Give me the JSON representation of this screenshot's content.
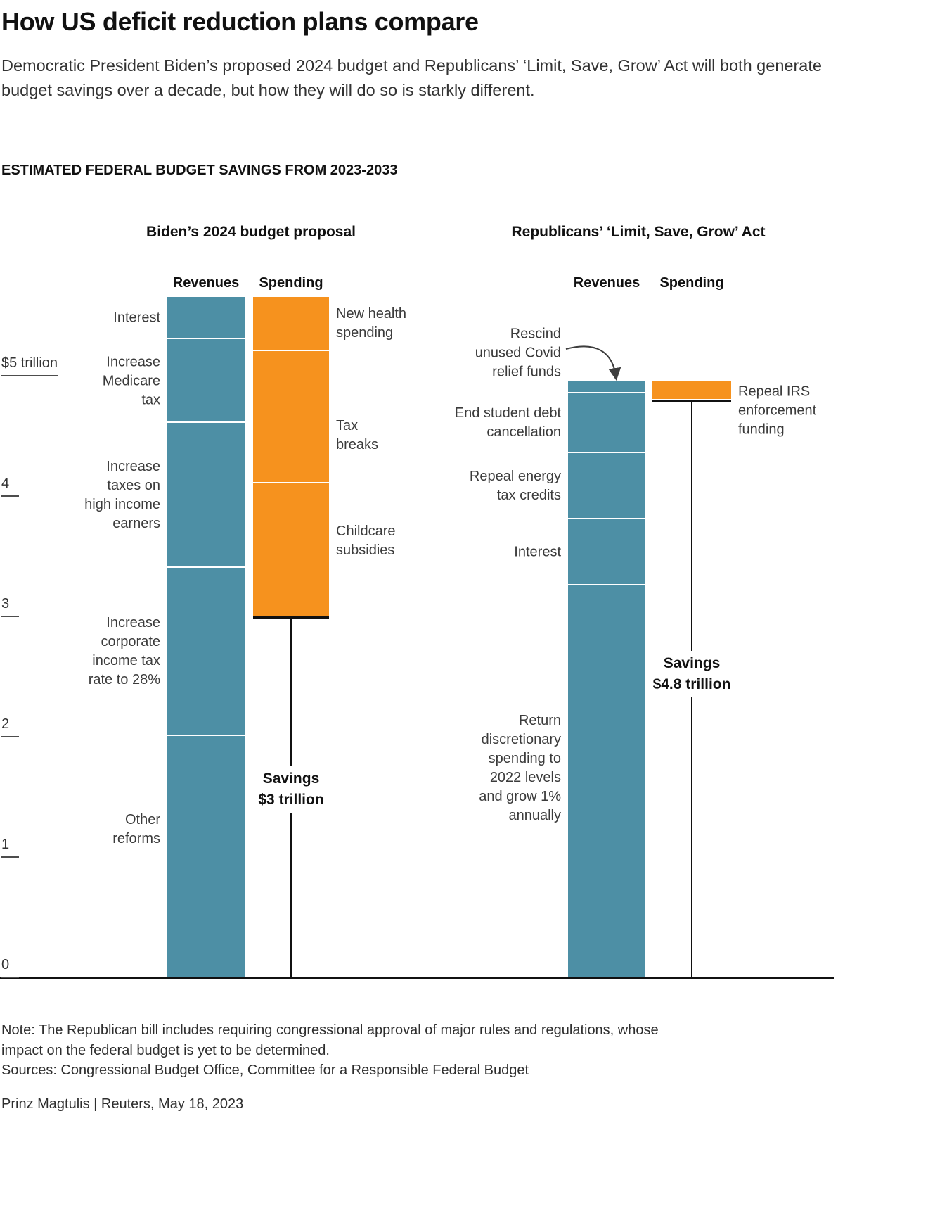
{
  "header": {
    "title": "How US deficit reduction plans compare",
    "subtitle": "Democratic President Biden’s proposed 2024 budget and Republicans’ ‘Limit, Save, Grow’ Act will both generate budget savings over a decade, but how they will do so is starkly different."
  },
  "chart_data": {
    "type": "bar",
    "variant": "stacked-floating-comparison",
    "title": "ESTIMATED FEDERAL BUDGET SAVINGS FROM 2023-2033",
    "unit": "trillions of US dollars",
    "ylim": [
      0,
      5.8
    ],
    "grid": false,
    "y_ticks": [
      {
        "value": 5,
        "label": "$5 trillion"
      },
      {
        "value": 4,
        "label": "4"
      },
      {
        "value": 3,
        "label": "3"
      },
      {
        "value": 2,
        "label": "2"
      },
      {
        "value": 1,
        "label": "1"
      },
      {
        "value": 0,
        "label": "0"
      }
    ],
    "colors": {
      "revenues": "#4d8fa5",
      "spending": "#f6921e",
      "axis": "#111111"
    },
    "groups": [
      {
        "id": "biden",
        "title": "Biden’s 2024 budget proposal",
        "columns": {
          "revenues": "Revenues",
          "spending": "Spending"
        },
        "revenues_total": 5.65,
        "revenues_segments": [
          {
            "label": "Interest",
            "value": 0.35
          },
          {
            "label": "Increase\nMedicare\ntax",
            "value": 0.7
          },
          {
            "label": "Increase\ntaxes on\nhigh income\nearners",
            "value": 1.2
          },
          {
            "label": "Increase\ncorporate\nincome tax\nrate to 28%",
            "value": 1.4
          },
          {
            "label": "Other\nreforms",
            "value": 2.0
          }
        ],
        "spending_top": 5.65,
        "spending_bottom": 3.0,
        "spending_segments": [
          {
            "label": "New health\nspending",
            "value": 0.45
          },
          {
            "label": "Tax\nbreaks",
            "value": 1.1
          },
          {
            "label": "Childcare\nsubsidies",
            "value": 1.1
          }
        ],
        "savings": {
          "title": "Savings",
          "amount": "$3 trillion",
          "value": 3.0
        }
      },
      {
        "id": "republicans",
        "title": "Republicans’ ‘Limit, Save, Grow’ Act",
        "columns": {
          "revenues": "Revenues",
          "spending": "Spending"
        },
        "revenues_total": 4.95,
        "revenues_segments": [
          {
            "label": "Rescind\nunused Covid\nrelief funds",
            "value": 0.1
          },
          {
            "label": "End student debt\ncancellation",
            "value": 0.5
          },
          {
            "label": "Repeal energy\ntax credits",
            "value": 0.55
          },
          {
            "label": "Interest",
            "value": 0.55
          },
          {
            "label": "Return\ndiscretionary\nspending to\n2022 levels\nand grow 1%\nannually",
            "value": 3.25
          }
        ],
        "spending_top": 4.95,
        "spending_bottom": 4.8,
        "spending_segments": [
          {
            "label": "Repeal IRS\nenforcement\nfunding",
            "value": 0.15
          }
        ],
        "savings": {
          "title": "Savings",
          "amount": "$4.8 trillion",
          "value": 4.8
        }
      }
    ]
  },
  "footer": {
    "note": "Note: The Republican bill includes requiring congressional approval of major rules and regulations, whose impact on the federal budget is yet to be determined.",
    "sources": "Sources: Congressional Budget Office, Committee for a Responsible Federal Budget",
    "byline": "Prinz Magtulis  |  Reuters, May 18, 2023"
  }
}
